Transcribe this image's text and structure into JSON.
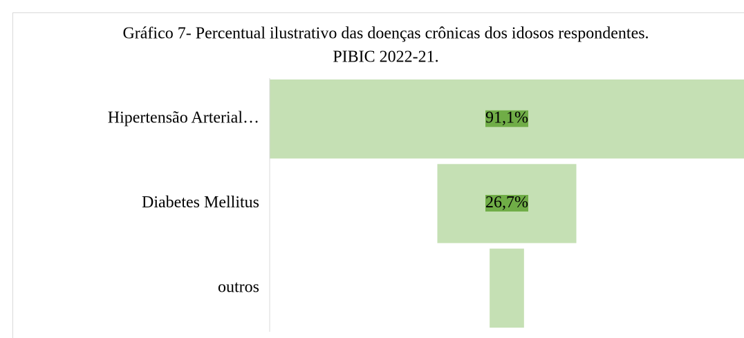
{
  "chart_data": {
    "type": "funnel",
    "title": [
      "Gráfico 7- Percentual ilustrativo das doenças crônicas dos idosos respondentes.",
      "PIBIC 2022-21."
    ],
    "categories": [
      "Hipertensão Arterial…",
      "Diabetes Mellitus",
      "outros"
    ],
    "values": [
      91.1,
      26.7,
      6.6
    ],
    "value_labels": [
      "91,1%",
      "26,7%",
      null
    ],
    "color": "#c5e0b4",
    "label_background": "#70ad47"
  }
}
